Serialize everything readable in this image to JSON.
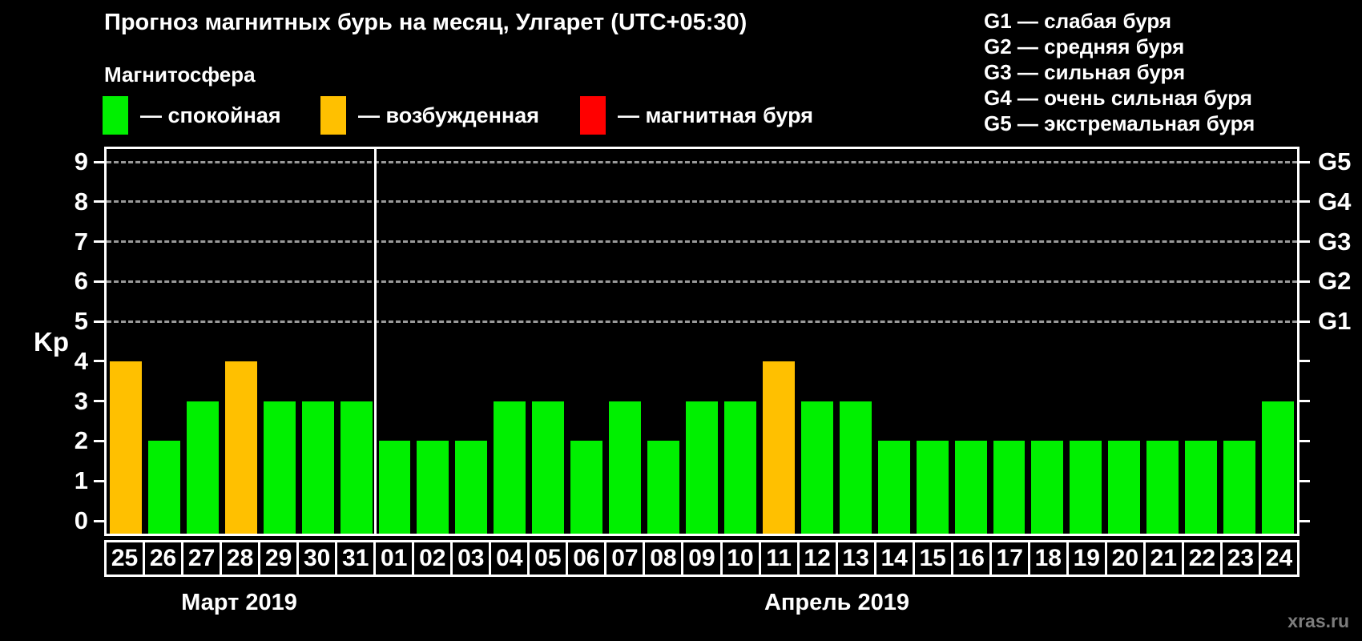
{
  "title": "Прогноз магнитных бурь на месяц, Улгарет (UTC+05:30)",
  "legend": {
    "heading": "Магнитосфера",
    "items": [
      {
        "key": "quiet",
        "label": "— спокойная",
        "color": "#00f000"
      },
      {
        "key": "unsettled",
        "label": "— возбужденная",
        "color": "#ffc000"
      },
      {
        "key": "storm",
        "label": "— магнитная буря",
        "color": "#ff0000"
      }
    ]
  },
  "g_scale_legend": {
    "items": [
      "G1 — слабая буря",
      "G2 — средняя буря",
      "G3 — сильная буря",
      "G4 — очень сильная буря",
      "G5 — экстремальная буря"
    ]
  },
  "watermark": "xras.ru",
  "chart_data": {
    "type": "bar",
    "title": "Прогноз магнитных бурь на месяц, Улгарет (UTC+05:30)",
    "ylabel": "Kp",
    "ylim": [
      0,
      9
    ],
    "y_ticks": [
      0,
      1,
      2,
      3,
      4,
      5,
      6,
      7,
      8,
      9
    ],
    "gridlines_at": [
      5,
      6,
      7,
      8,
      9
    ],
    "grid": true,
    "legend_position": "top",
    "right_axis_labels": [
      {
        "kp": 5,
        "label": "G1"
      },
      {
        "kp": 6,
        "label": "G2"
      },
      {
        "kp": 7,
        "label": "G3"
      },
      {
        "kp": 8,
        "label": "G4"
      },
      {
        "kp": 9,
        "label": "G5"
      }
    ],
    "categories": [
      "25",
      "26",
      "27",
      "28",
      "29",
      "30",
      "31",
      "01",
      "02",
      "03",
      "04",
      "05",
      "06",
      "07",
      "08",
      "09",
      "10",
      "11",
      "12",
      "13",
      "14",
      "15",
      "16",
      "17",
      "18",
      "19",
      "20",
      "21",
      "22",
      "23",
      "24"
    ],
    "values": [
      4,
      2,
      3,
      4,
      3,
      3,
      3,
      2,
      2,
      2,
      3,
      3,
      2,
      3,
      2,
      3,
      3,
      4,
      3,
      3,
      2,
      2,
      2,
      2,
      2,
      2,
      2,
      2,
      2,
      2,
      3
    ],
    "statuses": [
      "unsettled",
      "quiet",
      "quiet",
      "unsettled",
      "quiet",
      "quiet",
      "quiet",
      "quiet",
      "quiet",
      "quiet",
      "quiet",
      "quiet",
      "quiet",
      "quiet",
      "quiet",
      "quiet",
      "quiet",
      "unsettled",
      "quiet",
      "quiet",
      "quiet",
      "quiet",
      "quiet",
      "quiet",
      "quiet",
      "quiet",
      "quiet",
      "quiet",
      "quiet",
      "quiet",
      "quiet"
    ],
    "colors": {
      "quiet": "#00f000",
      "unsettled": "#ffc000",
      "storm": "#ff0000"
    },
    "month_groups": [
      {
        "label": "Март 2019",
        "days": 7
      },
      {
        "label": "Апрель 2019",
        "days": 24
      }
    ]
  }
}
